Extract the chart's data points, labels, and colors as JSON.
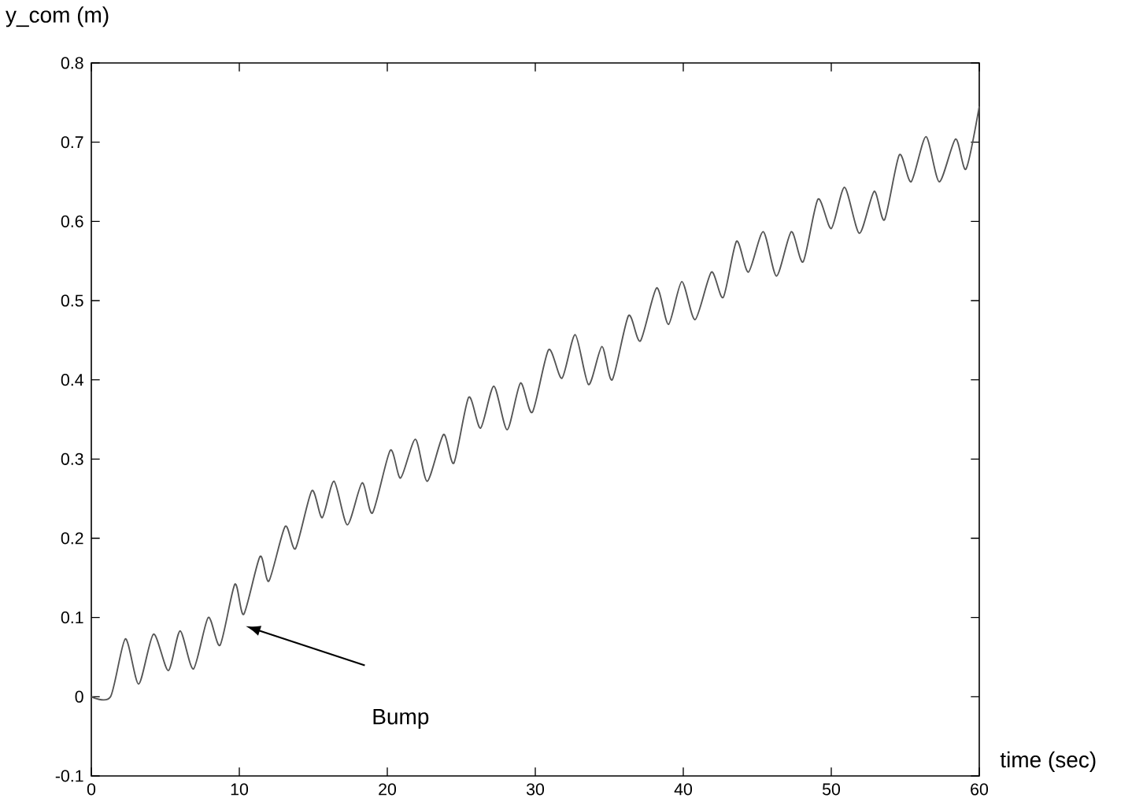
{
  "chart_data": {
    "type": "line",
    "xlabel": "time (sec)",
    "ylabel": "y_com (m)",
    "x": [
      0,
      1.3,
      2.3,
      3.2,
      4.2,
      5.2,
      6.0,
      6.9,
      7.9,
      8.7,
      9.7,
      10.3,
      11.4,
      12.0,
      13.1,
      13.8,
      14.9,
      15.6,
      16.4,
      17.3,
      18.3,
      19.0,
      20.2,
      20.9,
      21.9,
      22.7,
      23.8,
      24.5,
      25.5,
      26.3,
      27.2,
      28.1,
      29.0,
      29.8,
      30.9,
      31.8,
      32.7,
      33.6,
      34.5,
      35.2,
      36.3,
      37.1,
      38.2,
      39.0,
      39.9,
      40.8,
      41.9,
      42.7,
      43.6,
      44.4,
      45.4,
      46.3,
      47.3,
      48.1,
      49.1,
      50.0,
      50.9,
      51.9,
      52.9,
      53.6,
      54.6,
      55.4,
      56.4,
      57.3,
      58.4,
      59.1,
      60.0
    ],
    "series": [
      {
        "color": "#555555",
        "line_style": "solid",
        "values": [
          0,
          0,
          0.073,
          0.016,
          0.079,
          0.033,
          0.083,
          0.035,
          0.1,
          0.065,
          0.142,
          0.104,
          0.177,
          0.146,
          0.215,
          0.187,
          0.26,
          0.226,
          0.272,
          0.217,
          0.27,
          0.232,
          0.311,
          0.276,
          0.325,
          0.272,
          0.331,
          0.295,
          0.378,
          0.339,
          0.392,
          0.337,
          0.396,
          0.359,
          0.438,
          0.402,
          0.457,
          0.394,
          0.442,
          0.4,
          0.481,
          0.449,
          0.516,
          0.47,
          0.524,
          0.476,
          0.536,
          0.504,
          0.575,
          0.536,
          0.587,
          0.531,
          0.587,
          0.549,
          0.628,
          0.591,
          0.643,
          0.585,
          0.638,
          0.602,
          0.684,
          0.65,
          0.707,
          0.65,
          0.704,
          0.666,
          0.745
        ]
      }
    ],
    "xlim": [
      0,
      60
    ],
    "ylim": [
      -0.1,
      0.8
    ],
    "xticks": [
      0,
      10,
      20,
      30,
      40,
      50,
      60
    ],
    "yticks": [
      -0.1,
      0,
      0.1,
      0.2,
      0.3,
      0.4,
      0.5,
      0.6,
      0.7,
      0.8
    ],
    "grid": false,
    "marker": "none",
    "annotations": [
      "Bump"
    ]
  }
}
